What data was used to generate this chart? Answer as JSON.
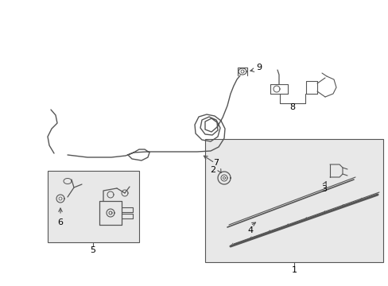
{
  "bg_color": "#ffffff",
  "line_color": "#555555",
  "box_color": "#e8e8e8",
  "label_color": "#000000",
  "figsize": [
    4.89,
    3.6
  ],
  "dpi": 100
}
